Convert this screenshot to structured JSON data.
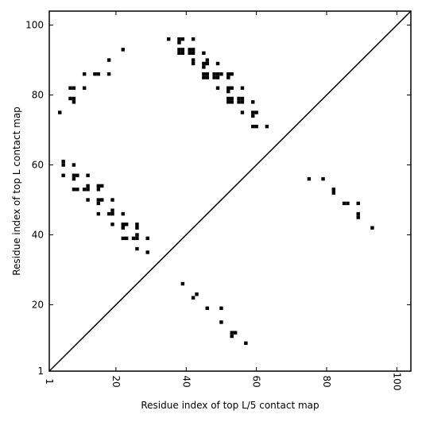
{
  "chart_data": {
    "type": "scatter",
    "title": "",
    "xlabel": "Residue index of top L/5 contact map",
    "ylabel": "Residue index of top L contact map",
    "xlim": [
      1,
      104
    ],
    "ylim": [
      1,
      104
    ],
    "xticks": [
      1,
      20,
      40,
      60,
      80,
      100
    ],
    "yticks": [
      1,
      20,
      40,
      60,
      80,
      100
    ],
    "grid": false,
    "legend": "none",
    "marker": "square",
    "colors": {
      "marks": "#000000",
      "diagonal": "#000000",
      "axes": "#000000",
      "background": "#ffffff"
    },
    "diagonal": {
      "from": [
        1,
        1
      ],
      "to": [
        104,
        104
      ]
    },
    "series": [
      {
        "points": [
          [
            4,
            75
          ],
          [
            5,
            61
          ],
          [
            5,
            60
          ],
          [
            5,
            57
          ],
          [
            7,
            82
          ],
          [
            8,
            82
          ],
          [
            7,
            79
          ],
          [
            8,
            79
          ],
          [
            8,
            78
          ],
          [
            8,
            60
          ],
          [
            8,
            57
          ],
          [
            8,
            56
          ],
          [
            9,
            57
          ],
          [
            8,
            53
          ],
          [
            9,
            53
          ],
          [
            11,
            86
          ],
          [
            11,
            82
          ],
          [
            11,
            53
          ],
          [
            12,
            57
          ],
          [
            12,
            54
          ],
          [
            12,
            53
          ],
          [
            12,
            50
          ],
          [
            14,
            86
          ],
          [
            15,
            86
          ],
          [
            15,
            54
          ],
          [
            15,
            53
          ],
          [
            16,
            54
          ],
          [
            15,
            50
          ],
          [
            16,
            50
          ],
          [
            15,
            49
          ],
          [
            15,
            46
          ],
          [
            18,
            90
          ],
          [
            18,
            86
          ],
          [
            18,
            46
          ],
          [
            19,
            47
          ],
          [
            19,
            46
          ],
          [
            19,
            50
          ],
          [
            19,
            43
          ],
          [
            22,
            93
          ],
          [
            22,
            46
          ],
          [
            22,
            43
          ],
          [
            23,
            43
          ],
          [
            22,
            42
          ],
          [
            22,
            39
          ],
          [
            23,
            39
          ],
          [
            25,
            39
          ],
          [
            26,
            39
          ],
          [
            26,
            40
          ],
          [
            26,
            43
          ],
          [
            26,
            42
          ],
          [
            26,
            36
          ],
          [
            29,
            39
          ],
          [
            29,
            35
          ],
          [
            35,
            96
          ],
          [
            38,
            96
          ],
          [
            39,
            96
          ],
          [
            38,
            95
          ],
          [
            38,
            93
          ],
          [
            39,
            93
          ],
          [
            38,
            92
          ],
          [
            39,
            92
          ],
          [
            41,
            93
          ],
          [
            42,
            93
          ],
          [
            41,
            92
          ],
          [
            42,
            92
          ],
          [
            42,
            90
          ],
          [
            42,
            89
          ],
          [
            42,
            96
          ],
          [
            45,
            92
          ],
          [
            45,
            89
          ],
          [
            46,
            89
          ],
          [
            45,
            88
          ],
          [
            46,
            90
          ],
          [
            45,
            86
          ],
          [
            46,
            86
          ],
          [
            45,
            85
          ],
          [
            46,
            85
          ],
          [
            48,
            86
          ],
          [
            49,
            86
          ],
          [
            50,
            86
          ],
          [
            48,
            85
          ],
          [
            49,
            85
          ],
          [
            49,
            89
          ],
          [
            49,
            82
          ],
          [
            52,
            86
          ],
          [
            52,
            85
          ],
          [
            52,
            82
          ],
          [
            53,
            82
          ],
          [
            52,
            81
          ],
          [
            53,
            86
          ],
          [
            52,
            79
          ],
          [
            53,
            79
          ],
          [
            52,
            78
          ],
          [
            53,
            78
          ],
          [
            55,
            79
          ],
          [
            56,
            79
          ],
          [
            55,
            78
          ],
          [
            56,
            78
          ],
          [
            56,
            82
          ],
          [
            56,
            75
          ],
          [
            59,
            78
          ],
          [
            59,
            75
          ],
          [
            60,
            75
          ],
          [
            59,
            74
          ],
          [
            59,
            71
          ],
          [
            60,
            71
          ],
          [
            63,
            71
          ],
          [
            39,
            26
          ],
          [
            42,
            22
          ],
          [
            43,
            23
          ],
          [
            46,
            19
          ],
          [
            50,
            19
          ],
          [
            50,
            15
          ],
          [
            53,
            12
          ],
          [
            54,
            12
          ],
          [
            53,
            11
          ],
          [
            57,
            9
          ],
          [
            75,
            56
          ],
          [
            79,
            56
          ],
          [
            82,
            53
          ],
          [
            82,
            52
          ],
          [
            85,
            49
          ],
          [
            86,
            49
          ],
          [
            89,
            49
          ],
          [
            89,
            46
          ],
          [
            89,
            45
          ],
          [
            93,
            42
          ]
        ]
      }
    ]
  }
}
